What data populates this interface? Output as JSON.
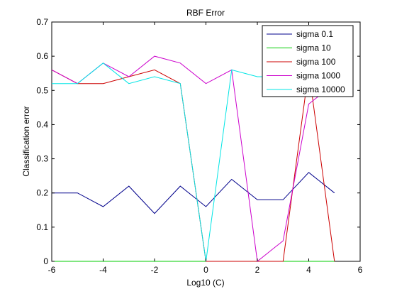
{
  "chart_data": {
    "type": "line",
    "title": "RBF Error",
    "xlabel": "Log10 (C)",
    "ylabel": "Classification error",
    "xlim": [
      -6,
      6
    ],
    "ylim": [
      0,
      0.7
    ],
    "xticks": [
      "-6",
      "-4",
      "-2",
      "0",
      "2",
      "4",
      "6"
    ],
    "yticks": [
      "0",
      "0.1",
      "0.2",
      "0.3",
      "0.4",
      "0.5",
      "0.6",
      "0.7"
    ],
    "grid": false,
    "legend_position": "top-right",
    "x": [
      -6,
      -5,
      -4,
      -3,
      -2,
      -1,
      0,
      1,
      2,
      3,
      4,
      5
    ],
    "series": [
      {
        "name": "sigma 0.1",
        "color": "#00008b",
        "values": [
          0.2,
          0.2,
          0.16,
          0.22,
          0.14,
          0.22,
          0.16,
          0.24,
          0.18,
          0.18,
          0.26,
          0.2
        ]
      },
      {
        "name": "sigma 10",
        "color": "#00cc00",
        "values": [
          0,
          0,
          0,
          0,
          0,
          0,
          0,
          0,
          0,
          0,
          0,
          0
        ]
      },
      {
        "name": "sigma 100",
        "color": "#cc0000",
        "values": [
          0.56,
          0.52,
          0.52,
          0.54,
          0.56,
          0.52,
          0,
          0,
          0,
          0,
          0.56,
          0
        ]
      },
      {
        "name": "sigma 1000",
        "color": "#cc00cc",
        "values": [
          0.56,
          0.52,
          0.58,
          0.54,
          0.6,
          0.58,
          0.52,
          0.56,
          0,
          0.06,
          0.46,
          0.52
        ]
      },
      {
        "name": "sigma 10000",
        "color": "#00e5e5",
        "values": [
          0.52,
          0.52,
          0.58,
          0.52,
          0.54,
          0.52,
          0,
          0.56,
          0.54,
          0.54,
          0.54,
          0.54
        ]
      }
    ]
  }
}
